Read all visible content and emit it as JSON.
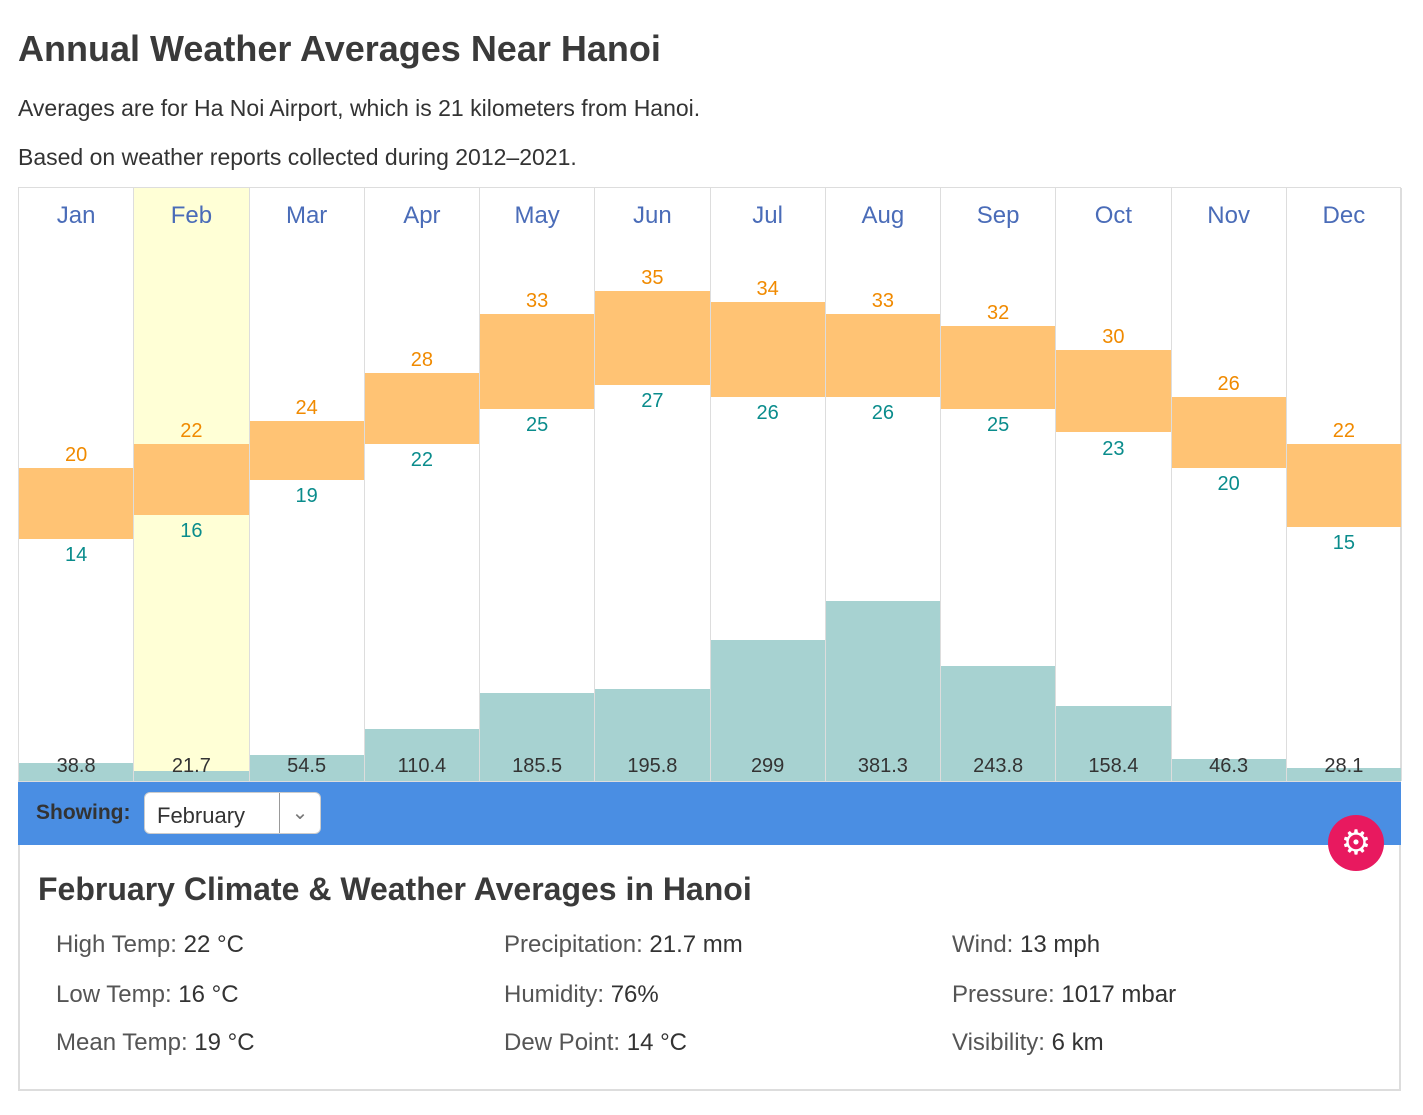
{
  "title": "Annual Weather Averages Near Hanoi",
  "subtitle1": "Averages are for Ha Noi Airport, which is 21 kilometers from Hanoi.",
  "subtitle2": "Based on weather reports collected during 2012–2021.",
  "chart_data": {
    "type": "bar",
    "categories": [
      "Jan",
      "Feb",
      "Mar",
      "Apr",
      "May",
      "Jun",
      "Jul",
      "Aug",
      "Sep",
      "Oct",
      "Nov",
      "Dec"
    ],
    "series": [
      {
        "name": "High Temp",
        "values": [
          20,
          22,
          24,
          28,
          33,
          35,
          34,
          33,
          32,
          30,
          26,
          22
        ]
      },
      {
        "name": "Low Temp",
        "values": [
          14,
          16,
          19,
          22,
          25,
          27,
          26,
          26,
          25,
          23,
          20,
          15
        ]
      },
      {
        "name": "Precipitation",
        "values": [
          38.8,
          21.7,
          54.5,
          110.4,
          185.5,
          195.8,
          299,
          381.3,
          243.8,
          158.4,
          46.3,
          28.1
        ]
      }
    ],
    "selected": "Feb",
    "colors": {
      "temp": "#ffc374",
      "high": "#f08a00",
      "low": "#0a8c8c",
      "precip": "#a7d2d1",
      "selected": "#ffffd6"
    }
  },
  "showing": {
    "label": "Showing:",
    "value": "February"
  },
  "details": {
    "title": "February Climate & Weather Averages in Hanoi",
    "items": [
      {
        "k": "High Temp:",
        "v": "22 °C"
      },
      {
        "k": "Precipitation:",
        "v": "21.7 mm"
      },
      {
        "k": "Wind:",
        "v": "13 mph"
      },
      {
        "k": "Low Temp:",
        "v": "16 °C"
      },
      {
        "k": "Humidity:",
        "v": "76%"
      },
      {
        "k": "Pressure:",
        "v": "1017 mbar"
      },
      {
        "k": "Mean Temp:",
        "v": "19 °C"
      },
      {
        "k": "Dew Point:",
        "v": "14 °C"
      },
      {
        "k": "Visibility:",
        "v": "6 km"
      }
    ]
  },
  "accent": "#4a8ee3",
  "gear_color": "#e8195f"
}
